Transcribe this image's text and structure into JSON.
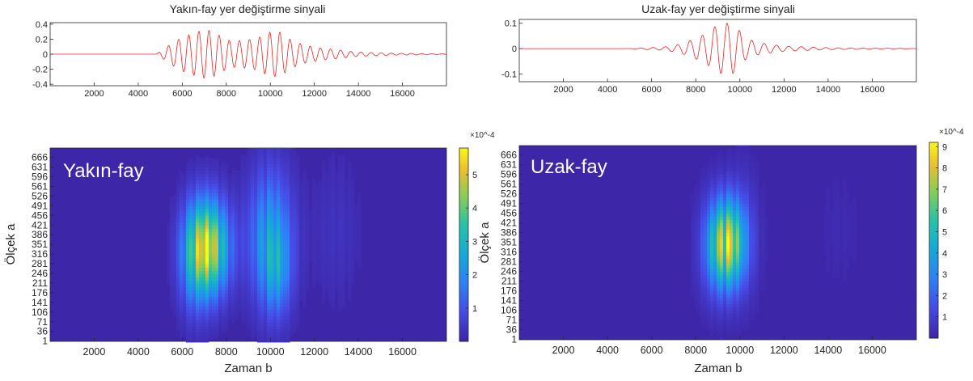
{
  "chart_data": [
    {
      "type": "line",
      "title": "Yakın-fay yer değiştirme sinyali",
      "xlim": [
        0,
        18000
      ],
      "ylim": [
        -0.42,
        0.42
      ],
      "xticks": [
        2000,
        4000,
        6000,
        8000,
        10000,
        12000,
        14000,
        16000
      ],
      "yticks": [
        0.4,
        0.2,
        0,
        -0.2,
        -0.4
      ],
      "ytick_labels": [
        "0.4",
        "0.2",
        "0",
        "-0.2",
        "-0.4"
      ],
      "line_color": "#e8231f",
      "envelope": {
        "x": [
          0,
          4800,
          5100,
          5500,
          6000,
          6500,
          6900,
          7300,
          7700,
          8200,
          8800,
          9400,
          10000,
          10400,
          11000,
          11600,
          12200,
          13000,
          13800,
          14600,
          15400,
          16200,
          17000,
          18000
        ],
        "y": [
          0,
          0,
          0.08,
          0.2,
          0.32,
          0.38,
          0.42,
          0.4,
          0.3,
          0.2,
          0.2,
          0.22,
          0.3,
          0.3,
          0.18,
          0.12,
          0.09,
          0.07,
          0.04,
          0.03,
          0.02,
          0.015,
          0.01,
          0.005
        ]
      },
      "period": 460
    },
    {
      "type": "line",
      "title": "Uzak-fay yer değiştirme sinyali",
      "xlim": [
        0,
        18000
      ],
      "ylim": [
        -0.13,
        0.115
      ],
      "xticks": [
        2000,
        4000,
        6000,
        8000,
        10000,
        12000,
        14000,
        16000
      ],
      "yticks": [
        0.1,
        0,
        -0.1
      ],
      "ytick_labels": [
        "0.1",
        "0",
        "-0.1"
      ],
      "line_color": "#e8231f",
      "envelope": {
        "x": [
          0,
          4800,
          5500,
          6500,
          7200,
          7800,
          8300,
          8700,
          9000,
          9300,
          9600,
          9900,
          10300,
          10800,
          11500,
          12200,
          13000,
          14000,
          15000,
          16000,
          17000,
          18000
        ],
        "y": [
          0,
          0,
          0.004,
          0.008,
          0.02,
          0.04,
          0.06,
          0.08,
          0.105,
          0.1,
          0.11,
          0.08,
          0.04,
          0.025,
          0.015,
          0.01,
          0.008,
          0.005,
          0.004,
          0.003,
          0.002,
          0.001
        ]
      },
      "period": 560
    },
    {
      "type": "heatmap",
      "label": "Yakın-fay",
      "xlabel": "Zaman b",
      "ylabel": "Ölçek a",
      "xlim": [
        0,
        18000
      ],
      "xticks": [
        2000,
        4000,
        6000,
        8000,
        10000,
        12000,
        14000,
        16000
      ],
      "yticks": [
        "666",
        "631",
        "596",
        "561",
        "526",
        "491",
        "456",
        "421",
        "386",
        "351",
        "316",
        "281",
        "246",
        "211",
        "176",
        "141",
        "106",
        "71",
        "36",
        "1"
      ],
      "colorbar": {
        "min": 0,
        "max": 5.8,
        "ticks": [
          1,
          2,
          3,
          4,
          5
        ],
        "exponent": "×10^-4"
      },
      "peak_value": 5.6,
      "blobs": [
        {
          "time": 7200,
          "scale": 340,
          "amplitude": 5.6,
          "time_width": 650,
          "scale_width": 120
        },
        {
          "time": 6500,
          "scale": 300,
          "amplitude": 1.6,
          "time_width": 500,
          "scale_width": 140
        },
        {
          "time": 10000,
          "scale": 380,
          "amplitude": 2.6,
          "time_width": 700,
          "scale_width": 170
        },
        {
          "time": 10300,
          "scale": 250,
          "amplitude": 1.5,
          "time_width": 450,
          "scale_width": 110
        },
        {
          "time": 13000,
          "scale": 400,
          "amplitude": 0.35,
          "time_width": 800,
          "scale_width": 200
        }
      ]
    },
    {
      "type": "heatmap",
      "label": "Uzak-fay",
      "xlabel": "Zaman b",
      "ylabel": "Ölçek a",
      "xlim": [
        0,
        18000
      ],
      "xticks": [
        2000,
        4000,
        6000,
        8000,
        10000,
        12000,
        14000,
        16000
      ],
      "yticks": [
        "666",
        "631",
        "596",
        "561",
        "526",
        "491",
        "456",
        "421",
        "386",
        "351",
        "316",
        "281",
        "246",
        "211",
        "176",
        "141",
        "106",
        "71",
        "36",
        "1"
      ],
      "colorbar": {
        "min": 0,
        "max": 9.2,
        "ticks": [
          1,
          2,
          3,
          4,
          5,
          6,
          7,
          8,
          9
        ],
        "exponent": "×10^-4"
      },
      "peak_value": 8.6,
      "blobs": [
        {
          "time": 9450,
          "scale": 345,
          "amplitude": 8.6,
          "time_width": 550,
          "scale_width": 110
        },
        {
          "time": 8800,
          "scale": 330,
          "amplitude": 1.6,
          "time_width": 500,
          "scale_width": 130
        },
        {
          "time": 10200,
          "scale": 380,
          "amplitude": 0.9,
          "time_width": 500,
          "scale_width": 160
        },
        {
          "time": 14500,
          "scale": 400,
          "amplitude": 0.25,
          "time_width": 700,
          "scale_width": 160
        }
      ]
    }
  ]
}
